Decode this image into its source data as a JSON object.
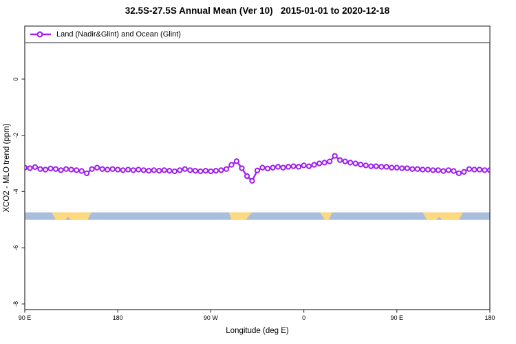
{
  "title": "32.5S-27.5S Annual Mean (Ver 10)   2015-01-01 to 2020-12-18",
  "legend": {
    "label": "Land (Nadir&Glint) and Ocean (Glint)",
    "marker_color": "#A020F0"
  },
  "colors": {
    "series": "#A020F0",
    "ocean_band": "#A9BEDC",
    "land_band": "#FFD97E",
    "axis": "#3F3F3F",
    "text": "#000000"
  },
  "chart_data": {
    "type": "line",
    "title": "32.5S-27.5S Annual Mean (Ver 10)   2015-01-01 to 2020-12-18",
    "xlabel": "Longitude (deg E)",
    "ylabel": "XCO2 - MLO trend (ppm)",
    "x_axis_note": "longitude wrapping eastward from 90E; x stored as degrees east of 90E",
    "xlim": [
      0,
      450
    ],
    "ylim": [
      -8.2,
      1.884
    ],
    "grid": false,
    "legend_position": "top-left-inside-full-width-box",
    "xticks": [
      {
        "pos": 0,
        "label": "90 E"
      },
      {
        "pos": 90,
        "label": "180"
      },
      {
        "pos": 180,
        "label": "90 W"
      },
      {
        "pos": 270,
        "label": "0"
      },
      {
        "pos": 360,
        "label": "90 E"
      },
      {
        "pos": 450,
        "label": "180"
      }
    ],
    "yticks": [
      0,
      -2,
      -4,
      -6,
      -8
    ],
    "series": [
      {
        "name": "Land (Nadir&Glint) and Ocean (Glint)",
        "color": "#A020F0",
        "marker": "open-circle",
        "x": [
          0,
          5,
          10,
          15,
          20,
          25,
          30,
          35,
          40,
          45,
          50,
          55,
          60,
          65,
          70,
          75,
          80,
          85,
          90,
          95,
          100,
          105,
          110,
          115,
          120,
          125,
          130,
          135,
          140,
          145,
          150,
          155,
          160,
          165,
          170,
          175,
          180,
          185,
          190,
          195,
          200,
          205,
          210,
          215,
          220,
          225,
          230,
          235,
          240,
          245,
          250,
          255,
          260,
          265,
          270,
          275,
          280,
          285,
          290,
          295,
          300,
          305,
          310,
          315,
          320,
          325,
          330,
          335,
          340,
          345,
          350,
          355,
          360,
          365,
          370,
          375,
          380,
          385,
          390,
          395,
          400,
          405,
          410,
          415,
          420,
          425,
          430,
          435,
          440,
          445,
          450
        ],
        "values": [
          -3.15,
          -3.17,
          -3.13,
          -3.2,
          -3.22,
          -3.18,
          -3.2,
          -3.24,
          -3.2,
          -3.22,
          -3.24,
          -3.27,
          -3.35,
          -3.2,
          -3.15,
          -3.2,
          -3.22,
          -3.2,
          -3.22,
          -3.24,
          -3.22,
          -3.24,
          -3.22,
          -3.24,
          -3.26,
          -3.24,
          -3.26,
          -3.24,
          -3.26,
          -3.28,
          -3.24,
          -3.2,
          -3.24,
          -3.26,
          -3.28,
          -3.26,
          -3.28,
          -3.26,
          -3.24,
          -3.2,
          -3.05,
          -2.92,
          -3.17,
          -3.45,
          -3.62,
          -3.25,
          -3.15,
          -3.18,
          -3.15,
          -3.12,
          -3.15,
          -3.12,
          -3.1,
          -3.12,
          -3.07,
          -3.1,
          -3.05,
          -3.0,
          -2.97,
          -2.93,
          -2.73,
          -2.88,
          -2.93,
          -2.97,
          -3.0,
          -3.04,
          -3.07,
          -3.1,
          -3.1,
          -3.12,
          -3.12,
          -3.15,
          -3.15,
          -3.17,
          -3.17,
          -3.2,
          -3.2,
          -3.22,
          -3.22,
          -3.24,
          -3.24,
          -3.27,
          -3.24,
          -3.27,
          -3.35,
          -3.3,
          -3.2,
          -3.22,
          -3.22,
          -3.24,
          -3.24
        ]
      }
    ],
    "surface_band": {
      "description": "land/ocean strip along longitude",
      "y_top_ppm": -4.74,
      "y_bottom_ppm": -5.01,
      "ocean_color": "#A9BEDC",
      "land_color": "#FFD97E",
      "land_segments": [
        {
          "name": "australia",
          "top_start": 26,
          "top_end": 64.5,
          "bottom_start": 30,
          "bottom_end": 60.5,
          "notch_start": 39,
          "notch_end": 45
        },
        {
          "name": "south-america",
          "top_start": 197.5,
          "top_end": 220,
          "bottom_start": 200,
          "bottom_end": 213.5
        },
        {
          "name": "africa",
          "top_start": 285.5,
          "top_end": 297.5,
          "bottom_start": 290.5,
          "bottom_end": 294
        },
        {
          "name": "australia-repeat",
          "top_start": 385,
          "top_end": 424,
          "bottom_start": 389,
          "bottom_end": 420,
          "notch_start": 398,
          "notch_end": 404
        }
      ]
    }
  }
}
